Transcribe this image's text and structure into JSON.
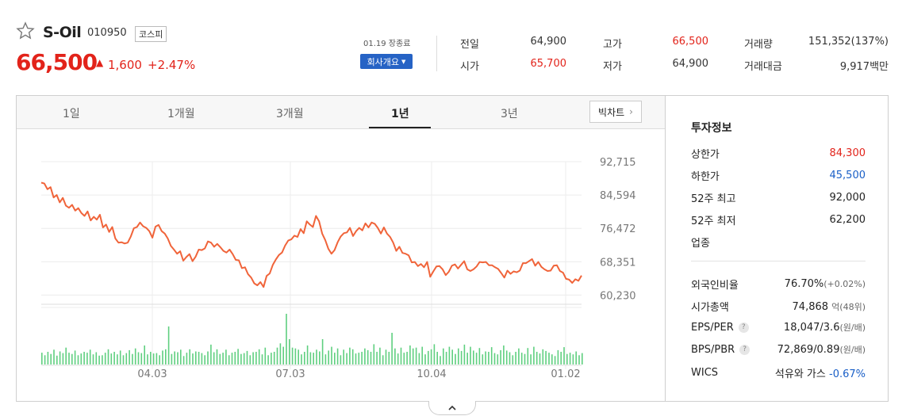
{
  "header": {
    "stock_name": "S-Oil",
    "stock_code": "010950",
    "market_badge": "코스피",
    "price": "66,500",
    "change": "1,600",
    "change_pct": "+2.47%",
    "close_status": "01.19 장종료",
    "company_button": "회사개요"
  },
  "quote": {
    "prev_label": "전일",
    "prev_value": "64,900",
    "open_label": "시가",
    "open_value": "65,700",
    "high_label": "고가",
    "high_value": "66,500",
    "low_label": "저가",
    "low_value": "64,900",
    "volume_label": "거래량",
    "volume_value": "151,352(137%)",
    "amount_label": "거래대금",
    "amount_value": "9,917백만"
  },
  "tabs": [
    {
      "label": "1일"
    },
    {
      "label": "1개월"
    },
    {
      "label": "3개월"
    },
    {
      "label": "1년"
    },
    {
      "label": "3년"
    }
  ],
  "active_tab": "1년",
  "big_chart_label": "빅차트",
  "sidebar": {
    "title": "투자정보",
    "upper_limit_label": "상한가",
    "upper_limit": "84,300",
    "lower_limit_label": "하한가",
    "lower_limit": "45,500",
    "high52_label": "52주 최고",
    "high52": "92,000",
    "low52_label": "52주 최저",
    "low52": "62,200",
    "industry_label": "업종",
    "foreign_label": "외국인비율",
    "foreign_value": "76.70%",
    "foreign_change": "(+0.02%)",
    "mcap_label": "시가총액",
    "mcap_value": "74,868",
    "mcap_unit": "억(48위)",
    "eps_label": "EPS/PER",
    "eps_value": "18,047/3.6",
    "eps_unit": "(원/배)",
    "bps_label": "BPS/PBR",
    "bps_value": "72,869/0.89",
    "bps_unit": "(원/배)",
    "wics_label": "WICS",
    "wics_value": "석유와 가스",
    "wics_change": "-0.67%"
  },
  "colors": {
    "up": "#e2231a",
    "down": "#1a5fc7",
    "price_line": "#f0643a",
    "volume": "#5fcf7f",
    "button": "#2663c5"
  },
  "chart_data": {
    "type": "line",
    "y_ticks": [
      "92,715",
      "84,594",
      "76,472",
      "68,351",
      "60,230"
    ],
    "x_ticks": [
      "04.03",
      "07.03",
      "10.04",
      "01.02"
    ],
    "ylim": [
      58000,
      92715
    ],
    "series": [
      {
        "values": [
          87600,
          87400,
          86000,
          86500,
          84000,
          84600,
          82800,
          83900,
          82000,
          81500,
          82200,
          80800,
          81400,
          80200,
          79500,
          80600,
          78400,
          79300,
          78600,
          79800,
          76700,
          77400,
          75600,
          76800,
          74000,
          73000,
          73100,
          72800,
          73000,
          74500,
          76500,
          76800,
          77900,
          77000,
          76600,
          75800,
          74200,
          76900,
          77300,
          75800,
          75200,
          74000,
          72200,
          71300,
          70300,
          70900,
          68600,
          69500,
          70200,
          68500,
          69600,
          71300,
          71200,
          71600,
          73300,
          73000,
          72000,
          72700,
          71900,
          71000,
          70600,
          71300,
          70200,
          68800,
          68700,
          66800,
          67000,
          65300,
          64500,
          63100,
          62600,
          63400,
          62200,
          64900,
          65500,
          67600,
          68900,
          70000,
          70600,
          72300,
          73500,
          73800,
          74700,
          74400,
          76300,
          75300,
          78200,
          77400,
          76800,
          79500,
          78200,
          75200,
          73600,
          71500,
          70300,
          71200,
          73100,
          74500,
          75300,
          75500,
          76600,
          74600,
          75800,
          76600,
          76000,
          77700,
          76700,
          77900,
          77600,
          76600,
          75200,
          76700,
          75200,
          74400,
          73000,
          71000,
          72000,
          70500,
          70300,
          69900,
          68200,
          68300,
          67300,
          67800,
          67000,
          68300,
          64700,
          66000,
          67200,
          67300,
          66500,
          65100,
          65900,
          67400,
          67700,
          66700,
          67600,
          68500,
          66500,
          66100,
          66500,
          67200,
          68300,
          68200,
          68300,
          67500,
          67500,
          67000,
          66600,
          65600,
          64500,
          66200,
          65400,
          66000,
          65800,
          66200,
          68000,
          68000,
          68500,
          69000,
          67400,
          68300,
          67100,
          66500,
          66100,
          66200,
          67400,
          67500,
          66100,
          65700,
          64200,
          64000,
          63200,
          64100,
          63700,
          65000
        ]
      }
    ],
    "volume_series": [
      28,
      22,
      30,
      25,
      35,
      21,
      31,
      27,
      40,
      28,
      25,
      33,
      22,
      26,
      30,
      28,
      35,
      24,
      29,
      21,
      22,
      28,
      36,
      26,
      30,
      24,
      33,
      22,
      27,
      34,
      25,
      38,
      29,
      27,
      45,
      24,
      30,
      26,
      27,
      22,
      33,
      36,
      90,
      25,
      31,
      29,
      35,
      20,
      28,
      36,
      26,
      31,
      30,
      27,
      22,
      31,
      47,
      29,
      36,
      25,
      28,
      35,
      22,
      28,
      30,
      37,
      25,
      27,
      32,
      22,
      29,
      30,
      36,
      24,
      40,
      22,
      28,
      30,
      40,
      50,
      42,
      120,
      60,
      40,
      38,
      35,
      24,
      30,
      45,
      29,
      28,
      35,
      31,
      60,
      24,
      33,
      42,
      28,
      38,
      22,
      35,
      27,
      40,
      36,
      26,
      28,
      30,
      38,
      34,
      30,
      48,
      30,
      40,
      22,
      35,
      30,
      75,
      38,
      26,
      40,
      28,
      30,
      45,
      38,
      40,
      27,
      42,
      24,
      32,
      36,
      48,
      30,
      20,
      38,
      30,
      42,
      35,
      25,
      38,
      32,
      47,
      28,
      42,
      33,
      28,
      39,
      24,
      31,
      30,
      41,
      27,
      24,
      34,
      45,
      33,
      29,
      22,
      30,
      38,
      28,
      25,
      39,
      24,
      42,
      30,
      26,
      36,
      32,
      28,
      24,
      20,
      34,
      30,
      41,
      25,
      28,
      24,
      31,
      22,
      27
    ]
  }
}
